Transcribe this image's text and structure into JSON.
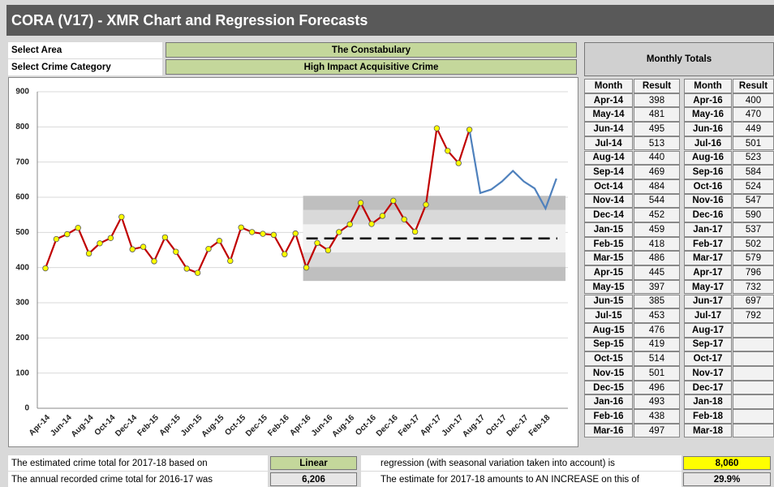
{
  "header": {
    "title": "CORA (V17) - XMR Chart and Regression Forecasts"
  },
  "filters": [
    {
      "label": "Select Area",
      "value": "The Constabulary"
    },
    {
      "label": "Select Crime Category",
      "value": "High Impact Acquisitive Crime"
    }
  ],
  "monthly_totals": {
    "title": "Monthly Totals",
    "columns": [
      "Month",
      "Result",
      "Month",
      "Result"
    ],
    "rows": [
      [
        "Apr-14",
        "398",
        "Apr-16",
        "400"
      ],
      [
        "May-14",
        "481",
        "May-16",
        "470"
      ],
      [
        "Jun-14",
        "495",
        "Jun-16",
        "449"
      ],
      [
        "Jul-14",
        "513",
        "Jul-16",
        "501"
      ],
      [
        "Aug-14",
        "440",
        "Aug-16",
        "523"
      ],
      [
        "Sep-14",
        "469",
        "Sep-16",
        "584"
      ],
      [
        "Oct-14",
        "484",
        "Oct-16",
        "524"
      ],
      [
        "Nov-14",
        "544",
        "Nov-16",
        "547"
      ],
      [
        "Dec-14",
        "452",
        "Dec-16",
        "590"
      ],
      [
        "Jan-15",
        "459",
        "Jan-17",
        "537"
      ],
      [
        "Feb-15",
        "418",
        "Feb-17",
        "502"
      ],
      [
        "Mar-15",
        "486",
        "Mar-17",
        "579"
      ],
      [
        "Apr-15",
        "445",
        "Apr-17",
        "796"
      ],
      [
        "May-15",
        "397",
        "May-17",
        "732"
      ],
      [
        "Jun-15",
        "385",
        "Jun-17",
        "697"
      ],
      [
        "Jul-15",
        "453",
        "Jul-17",
        "792"
      ],
      [
        "Aug-15",
        "476",
        "Aug-17",
        null
      ],
      [
        "Sep-15",
        "419",
        "Sep-17",
        null
      ],
      [
        "Oct-15",
        "514",
        "Oct-17",
        null
      ],
      [
        "Nov-15",
        "501",
        "Nov-17",
        null
      ],
      [
        "Dec-15",
        "496",
        "Dec-17",
        null
      ],
      [
        "Jan-16",
        "493",
        "Jan-18",
        null
      ],
      [
        "Feb-16",
        "438",
        "Feb-18",
        null
      ],
      [
        "Mar-16",
        "497",
        "Mar-18",
        null
      ]
    ]
  },
  "chart_data": {
    "type": "line",
    "categories": [
      "Apr-14",
      null,
      "Jun-14",
      null,
      "Aug-14",
      null,
      "Oct-14",
      null,
      "Dec-14",
      null,
      "Feb-15",
      null,
      "Apr-15",
      null,
      "Jun-15",
      null,
      "Aug-15",
      null,
      "Oct-15",
      null,
      "Dec-15",
      null,
      "Feb-16",
      null,
      "Apr-16",
      null,
      "Jun-16",
      null,
      "Aug-16",
      null,
      "Oct-16",
      null,
      "Dec-16",
      null,
      "Feb-17",
      null,
      "Apr-17",
      null,
      "Jun-17",
      null,
      "Aug-17",
      null,
      "Oct-17",
      null,
      "Dec-17",
      null,
      "Feb-18",
      null
    ],
    "series": [
      {
        "color": "#c00000",
        "markers": true,
        "values": [
          398,
          481,
          495,
          513,
          440,
          469,
          484,
          544,
          452,
          459,
          418,
          486,
          445,
          397,
          385,
          453,
          476,
          419,
          514,
          501,
          496,
          493,
          438,
          497,
          400,
          470,
          449,
          501,
          523,
          584,
          524,
          547,
          590,
          537,
          502,
          579,
          796,
          732,
          697,
          792,
          null,
          null,
          null,
          null,
          null,
          null,
          null,
          null
        ]
      },
      {
        "color": "#4f81bd",
        "markers": false,
        "values": [
          null,
          null,
          null,
          null,
          null,
          null,
          null,
          null,
          null,
          null,
          null,
          null,
          null,
          null,
          null,
          null,
          null,
          null,
          null,
          null,
          null,
          null,
          null,
          null,
          null,
          null,
          null,
          null,
          null,
          null,
          null,
          null,
          null,
          null,
          null,
          null,
          null,
          null,
          null,
          792,
          612,
          622,
          645,
          675,
          645,
          625,
          568,
          653
        ]
      }
    ],
    "control_limits": {
      "start": "Apr-16",
      "mean": 483,
      "upper": [
        604,
        564,
        523
      ],
      "lower": [
        362,
        402,
        443
      ],
      "colors": [
        "#bfbfbf",
        "#d9d9d9",
        "#f2f2f2"
      ]
    },
    "ylim": [
      0,
      900
    ],
    "yticks": [
      0,
      100,
      200,
      300,
      400,
      500,
      600,
      700,
      800,
      900
    ],
    "grid": true
  },
  "summary": [
    [
      "The estimated crime total for 2017-18 based on",
      "Linear",
      "regression (with seasonal variation taken into account) is",
      "8,060"
    ],
    [
      "The annual recorded crime total for 2016-17 was",
      "6,206",
      "The estimate for 2017-18 amounts to AN INCREASE on this of",
      "29.9%"
    ]
  ]
}
